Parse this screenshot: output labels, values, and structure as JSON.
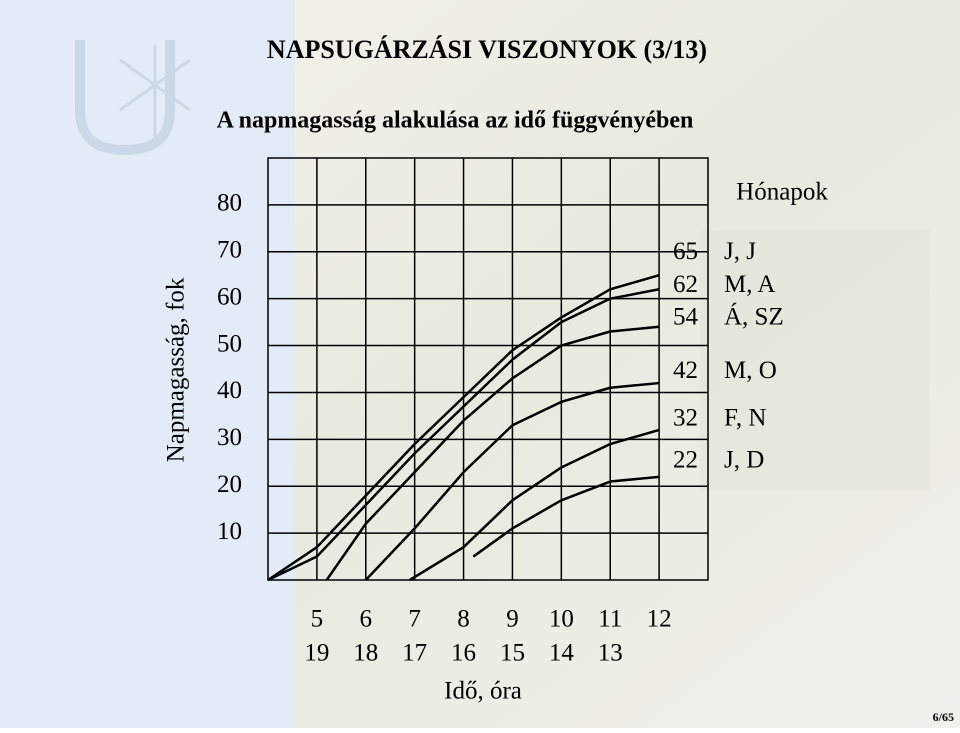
{
  "chart_data": {
    "type": "line",
    "title": "NAPSUGÁRZÁSI VISZONYOK (3/13)",
    "subtitle": "A napmagasság alakulása az idő függvényében",
    "y_label": "Napmagasság, fok",
    "x_label": "Idő, óra",
    "legend_title": "Hónapok",
    "page_number": "6/65",
    "xlim": [
      4,
      13
    ],
    "ylim": [
      0,
      90
    ],
    "xticks": [
      5,
      6,
      7,
      8,
      9,
      10,
      11,
      12
    ],
    "xticks_afternoon": [
      19,
      18,
      17,
      16,
      15,
      14,
      13
    ],
    "yticks": [
      10,
      20,
      30,
      40,
      50,
      60,
      70,
      80
    ],
    "grid": true,
    "series": [
      {
        "name": "J, J",
        "color": "#000000",
        "x": [
          4,
          5,
          6,
          7,
          8,
          9,
          10,
          11,
          12
        ],
        "values": [
          0,
          7,
          18,
          29,
          39,
          49,
          56,
          62,
          65
        ]
      },
      {
        "name": "M, A",
        "color": "#000000",
        "x": [
          4,
          5,
          6,
          7,
          8,
          9,
          10,
          11,
          12
        ],
        "values": [
          0,
          5,
          16,
          27,
          37,
          47,
          55,
          60,
          62
        ]
      },
      {
        "name": "Á, SZ",
        "color": "#000000",
        "x": [
          5.2,
          6,
          7,
          8,
          9,
          10,
          11,
          12
        ],
        "values": [
          0,
          12,
          23,
          34,
          43,
          50,
          53,
          54
        ]
      },
      {
        "name": "M, O",
        "color": "#000000",
        "x": [
          6,
          7,
          8,
          9,
          10,
          11,
          12
        ],
        "values": [
          0,
          11,
          23,
          33,
          38,
          41,
          42
        ]
      },
      {
        "name": "F, N",
        "color": "#000000",
        "x": [
          6.9,
          8,
          9,
          10,
          11,
          12
        ],
        "values": [
          0,
          7,
          17,
          24,
          29,
          32
        ]
      },
      {
        "name": "J, D",
        "color": "#000000",
        "x": [
          8.2,
          9,
          10,
          11,
          12
        ],
        "values": [
          5,
          11,
          17,
          21,
          22
        ]
      }
    ]
  }
}
